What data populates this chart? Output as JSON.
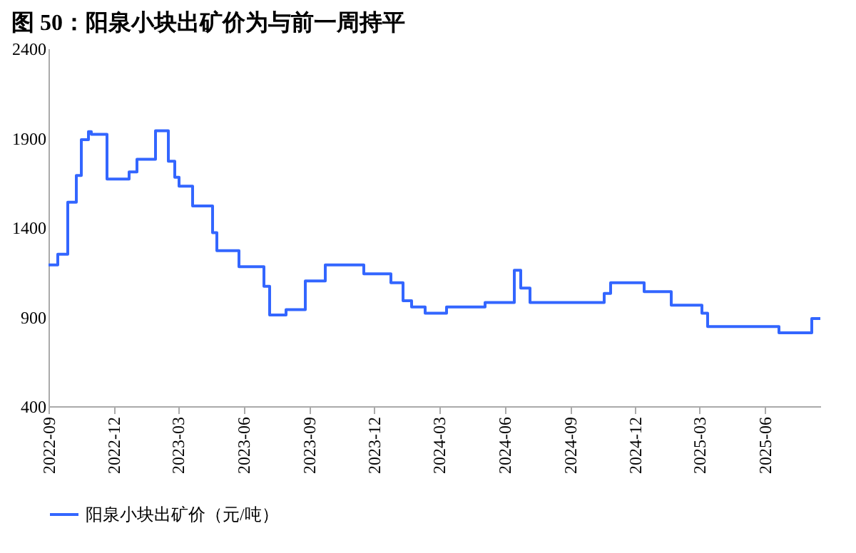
{
  "chart_data": {
    "type": "step",
    "title": "图 50：阳泉小块出矿价为与前一周持平",
    "x": [
      "2022-09-01",
      "2022-09-14",
      "2022-09-28",
      "2022-10-10",
      "2022-10-17",
      "2022-10-27",
      "2022-10-31",
      "2022-11-22",
      "2022-12-23",
      "2023-01-03",
      "2023-01-29",
      "2023-02-16",
      "2023-02-25",
      "2023-03-03",
      "2023-03-22",
      "2023-04-19",
      "2023-04-25",
      "2023-05-26",
      "2023-06-30",
      "2023-07-08",
      "2023-07-31",
      "2023-08-27",
      "2023-09-24",
      "2023-11-17",
      "2023-12-25",
      "2024-01-11",
      "2024-01-23",
      "2024-02-11",
      "2024-03-12",
      "2024-05-05",
      "2024-06-15",
      "2024-06-24",
      "2024-07-07",
      "2024-10-19",
      "2024-10-28",
      "2024-12-14",
      "2025-01-21",
      "2025-03-05",
      "2025-03-13",
      "2025-06-21",
      "2025-08-06",
      "2025-08-18"
    ],
    "series": [
      {
        "name": "阳泉小块出矿价（元/吨）",
        "color": "#3366ff",
        "values": [
          1190,
          1250,
          1540,
          1690,
          1890,
          1935,
          1920,
          1670,
          1710,
          1780,
          1940,
          1770,
          1680,
          1630,
          1520,
          1370,
          1270,
          1180,
          1070,
          910,
          940,
          1100,
          1190,
          1140,
          1090,
          990,
          955,
          920,
          955,
          980,
          1160,
          1060,
          980,
          1030,
          1090,
          1040,
          965,
          920,
          845,
          810,
          890,
          890
        ]
      }
    ],
    "xlim": [
      "2022-09-01",
      "2025-08-18"
    ],
    "xticks": [
      "2022-09",
      "2022-12",
      "2023-03",
      "2023-06",
      "2023-09",
      "2023-12",
      "2024-03",
      "2024-06",
      "2024-09",
      "2024-12",
      "2025-03",
      "2025-06"
    ],
    "ylim": [
      400,
      2400
    ],
    "yticks": [
      400,
      900,
      1400,
      1900,
      2400
    ],
    "grid": false,
    "legend": "bottom"
  }
}
